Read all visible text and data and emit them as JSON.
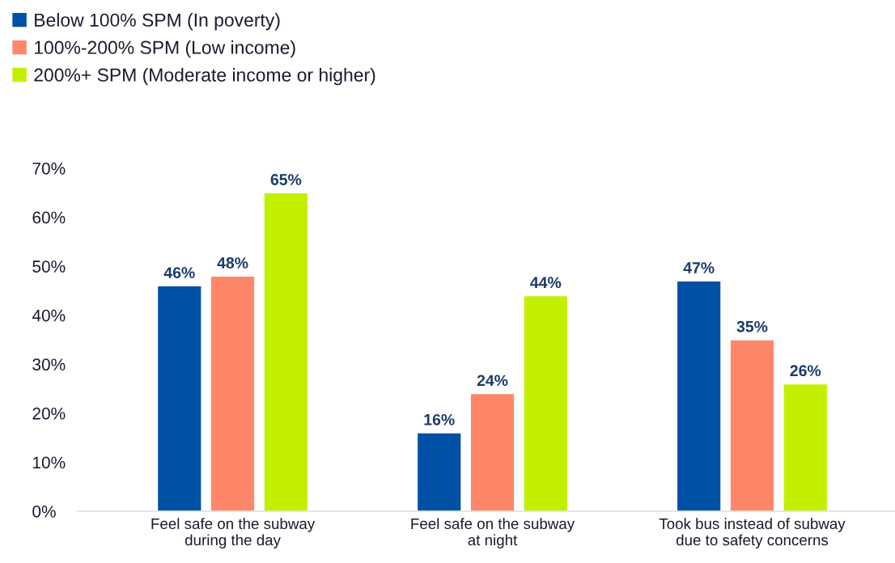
{
  "chart_data": {
    "type": "bar",
    "categories": [
      "Feel safe on the subway\nduring the day",
      "Feel safe on the subway\nat night",
      "Took bus instead of subway\ndue to safety concerns"
    ],
    "series": [
      {
        "name": "Below 100% SPM (In poverty)",
        "color": "#0050a5",
        "values": [
          46,
          16,
          47
        ],
        "value_labels": [
          "46%",
          "16%",
          "47%"
        ]
      },
      {
        "name": "100%-200% SPM (Low income)",
        "color": "#ff8769",
        "values": [
          48,
          24,
          35
        ],
        "value_labels": [
          "48%",
          "24%",
          "35%"
        ]
      },
      {
        "name": "200%+ SPM (Moderate income or higher)",
        "color": "#c3f000",
        "values": [
          65,
          44,
          26
        ],
        "value_labels": [
          "65%",
          "44%",
          "26%"
        ]
      }
    ],
    "ylim": [
      0,
      70
    ],
    "yticks": [
      {
        "value": 0,
        "label": "0%"
      },
      {
        "value": 10,
        "label": "10%"
      },
      {
        "value": 20,
        "label": "20%"
      },
      {
        "value": 30,
        "label": "30%"
      },
      {
        "value": 40,
        "label": "40%"
      },
      {
        "value": 50,
        "label": "50%"
      },
      {
        "value": 60,
        "label": "60%"
      },
      {
        "value": 70,
        "label": "70%"
      }
    ],
    "grid": false,
    "legend": "top left"
  }
}
